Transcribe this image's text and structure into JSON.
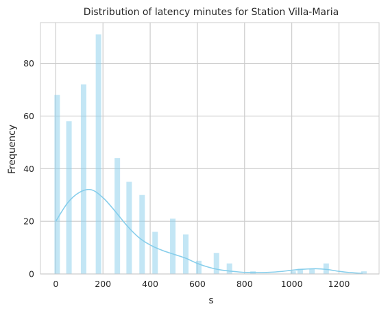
{
  "chart_data": {
    "type": "bar",
    "title": "Distribution of latency minutes for Station Villa-Maria",
    "xlabel": "s",
    "ylabel": "Frequency",
    "xlim": [
      -65,
      1370
    ],
    "ylim": [
      0,
      95.5
    ],
    "xticks": [
      0,
      200,
      400,
      600,
      800,
      1000,
      1200
    ],
    "yticks": [
      0,
      20,
      40,
      60,
      80
    ],
    "grid": true,
    "legend": "none",
    "bar_color": "#87ceeb",
    "kde_color": "#87ceeb",
    "bins": [
      {
        "x": 0,
        "count": 68
      },
      {
        "x": 50,
        "count": 58
      },
      {
        "x": 112,
        "count": 72
      },
      {
        "x": 175,
        "count": 91
      },
      {
        "x": 255,
        "count": 44
      },
      {
        "x": 305,
        "count": 35
      },
      {
        "x": 360,
        "count": 30
      },
      {
        "x": 415,
        "count": 16
      },
      {
        "x": 490,
        "count": 21
      },
      {
        "x": 545,
        "count": 15
      },
      {
        "x": 600,
        "count": 5
      },
      {
        "x": 675,
        "count": 8
      },
      {
        "x": 730,
        "count": 4
      },
      {
        "x": 830,
        "count": 1
      },
      {
        "x": 1000,
        "count": 1
      },
      {
        "x": 1030,
        "count": 2
      },
      {
        "x": 1080,
        "count": 2
      },
      {
        "x": 1140,
        "count": 4
      },
      {
        "x": 1300,
        "count": 1
      }
    ],
    "kde": {
      "x": [
        0,
        50,
        100,
        150,
        200,
        250,
        300,
        350,
        400,
        450,
        500,
        550,
        600,
        650,
        700,
        750,
        800,
        850,
        900,
        950,
        1000,
        1050,
        1100,
        1150,
        1200,
        1250,
        1300
      ],
      "y": [
        20,
        27,
        31,
        32,
        29,
        24,
        18.5,
        14,
        11,
        9,
        7.5,
        6,
        4,
        2.5,
        1.5,
        1,
        0.6,
        0.5,
        0.6,
        0.9,
        1.4,
        1.8,
        2.0,
        1.7,
        1.0,
        0.5,
        0.2
      ]
    }
  }
}
